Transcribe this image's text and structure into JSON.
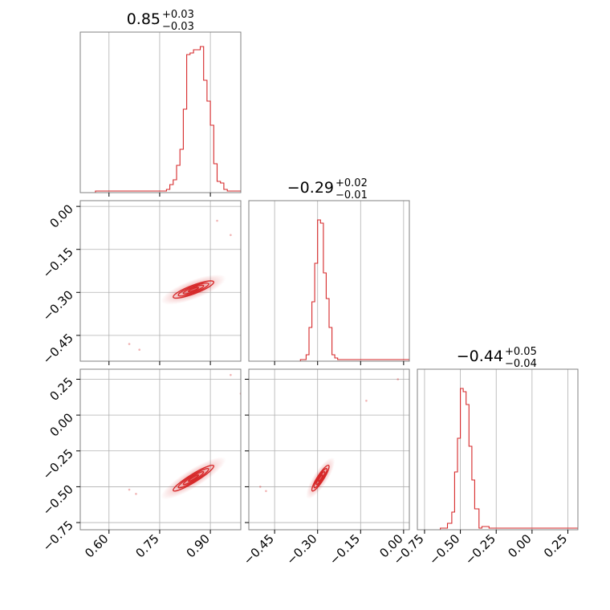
{
  "chart_data": {
    "type": "corner",
    "color": "#d62728",
    "grid": true,
    "titles": [
      {
        "value": "0.85",
        "plus": "+0.03",
        "minus": "−0.03"
      },
      {
        "value": "−0.29",
        "plus": "+0.02",
        "minus": "−0.01"
      },
      {
        "value": "−0.44",
        "plus": "+0.05",
        "minus": "−0.04"
      }
    ],
    "params": [
      {
        "range": [
          0.515,
          0.99
        ],
        "ticks": [
          0.6,
          0.75,
          0.9
        ],
        "tick_labels": [
          "0.60",
          "0.75",
          "0.90"
        ],
        "hist": {
          "x": [
            0.56,
            0.7,
            0.77,
            0.78,
            0.79,
            0.8,
            0.81,
            0.82,
            0.83,
            0.84,
            0.85,
            0.86,
            0.87,
            0.88,
            0.89,
            0.9,
            0.91,
            0.92,
            0.93,
            0.94,
            0.95,
            0.96,
            0.97,
            0.98
          ],
          "y": [
            0.01,
            0.01,
            0.02,
            0.05,
            0.08,
            0.17,
            0.27,
            0.52,
            0.86,
            0.87,
            0.89,
            0.89,
            0.91,
            0.7,
            0.57,
            0.42,
            0.18,
            0.07,
            0.06,
            0.02,
            0.01,
            0.01,
            0.01,
            0.01
          ]
        }
      },
      {
        "range": [
          -0.54,
          0.02
        ],
        "ticks": [
          -0.45,
          -0.3,
          -0.15,
          0.0
        ],
        "tick_labels": [
          "−0.45",
          "−0.30",
          "−0.15",
          "0.00"
        ],
        "hist": {
          "x": [
            -0.36,
            -0.34,
            -0.33,
            -0.32,
            -0.31,
            -0.3,
            -0.29,
            -0.28,
            -0.27,
            -0.26,
            -0.25,
            -0.24,
            -0.23,
            -0.2,
            -0.15,
            -0.1,
            -0.05,
            0.0
          ],
          "y": [
            0.01,
            0.04,
            0.21,
            0.37,
            0.61,
            0.88,
            0.86,
            0.55,
            0.39,
            0.21,
            0.04,
            0.02,
            0.01,
            0.01,
            0.01,
            0.01,
            0.01,
            0.01
          ]
        }
      },
      {
        "range": [
          -0.8,
          0.32
        ],
        "ticks": [
          -0.75,
          -0.5,
          -0.25,
          0.0,
          0.25
        ],
        "tick_labels": [
          "−0.75",
          "−0.50",
          "−0.25",
          "0.00",
          "0.25"
        ],
        "hist": {
          "x": [
            -0.64,
            -0.59,
            -0.56,
            -0.54,
            -0.52,
            -0.5,
            -0.48,
            -0.46,
            -0.44,
            -0.42,
            -0.4,
            -0.37,
            -0.35,
            -0.3,
            -0.25,
            -0.2,
            -0.1,
            0.0,
            0.1,
            0.15,
            0.22,
            0.25
          ],
          "y": [
            0.01,
            0.04,
            0.11,
            0.36,
            0.57,
            0.88,
            0.86,
            0.78,
            0.52,
            0.31,
            0.13,
            0.01,
            0.02,
            0.01,
            0.01,
            0.01,
            0.01,
            0.01,
            0.01,
            0.01,
            0.01,
            0.01
          ]
        }
      }
    ],
    "contours": [
      {
        "row": 1,
        "col": 0,
        "cx": 0.85,
        "cy": -0.29,
        "sx": 0.03,
        "sy": 0.015,
        "rho": 0.85,
        "scatter": [
          [
            0.66,
            -0.48
          ],
          [
            0.69,
            -0.5
          ],
          [
            0.96,
            -0.1
          ],
          [
            0.92,
            -0.05
          ]
        ]
      },
      {
        "row": 2,
        "col": 0,
        "cx": 0.85,
        "cy": -0.44,
        "sx": 0.03,
        "sy": 0.045,
        "rho": 0.93,
        "scatter": [
          [
            0.66,
            -0.52
          ],
          [
            0.68,
            -0.55
          ],
          [
            0.96,
            0.28
          ],
          [
            0.99,
            0.15
          ]
        ]
      },
      {
        "row": 2,
        "col": 1,
        "cx": -0.29,
        "cy": -0.44,
        "sx": 0.015,
        "sy": 0.045,
        "rho": 0.9,
        "scatter": [
          [
            -0.5,
            -0.5
          ],
          [
            -0.48,
            -0.53
          ],
          [
            -0.02,
            0.25
          ],
          [
            -0.13,
            0.1
          ]
        ]
      }
    ]
  }
}
